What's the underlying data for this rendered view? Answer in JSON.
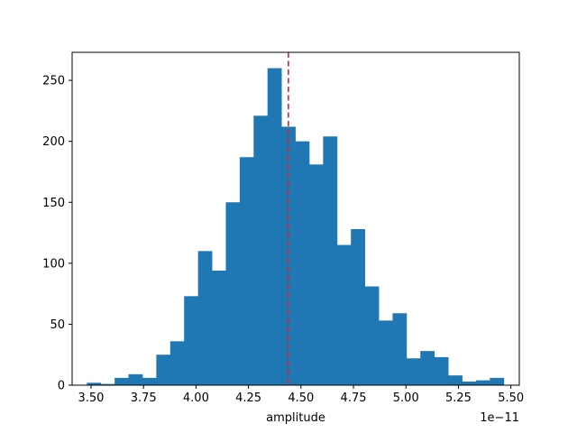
{
  "chart_data": {
    "type": "bar",
    "chart_subtype": "histogram",
    "title": "",
    "xlabel": "amplitude",
    "ylabel": "",
    "x_offset_label": "1e−11",
    "x_units_scale": 1e-11,
    "xlim": [
      3.41,
      5.54
    ],
    "ylim": [
      0,
      273
    ],
    "x_ticks": [
      3.5,
      3.75,
      4.0,
      4.25,
      4.5,
      4.75,
      5.0,
      5.25,
      5.5
    ],
    "x_tick_labels": [
      "3.50",
      "3.75",
      "4.00",
      "4.25",
      "4.50",
      "4.75",
      "5.00",
      "5.25",
      "5.50"
    ],
    "y_ticks": [
      0,
      50,
      100,
      150,
      200,
      250
    ],
    "y_tick_labels": [
      "0",
      "50",
      "100",
      "150",
      "200",
      "250"
    ],
    "grid": false,
    "bar_color": "#1f77b4",
    "bin_edges": [
      3.48,
      3.5462,
      3.6124,
      3.6786,
      3.7448,
      3.811,
      3.8772,
      3.9434,
      4.0096,
      4.0758,
      4.142,
      4.2082,
      4.2744,
      4.3406,
      4.4068,
      4.473,
      4.5392,
      4.6054,
      4.6716,
      4.7378,
      4.804,
      4.8702,
      4.9364,
      5.0026,
      5.0688,
      5.135,
      5.2012,
      5.2674,
      5.3336,
      5.3998,
      5.466
    ],
    "counts": [
      2,
      1,
      6,
      9,
      6,
      25,
      36,
      73,
      110,
      94,
      150,
      187,
      221,
      260,
      212,
      200,
      181,
      204,
      115,
      128,
      81,
      53,
      59,
      22,
      28,
      23,
      8,
      3,
      4,
      6
    ],
    "reference_line": {
      "x": 4.44,
      "style": "dashed",
      "color": "#d62728"
    }
  }
}
